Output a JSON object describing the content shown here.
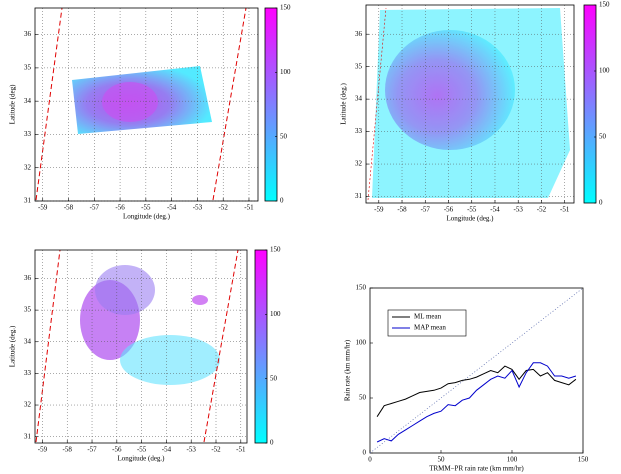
{
  "chart_data": [
    {
      "type": "image",
      "xlabel": "Longitude (deg.)",
      "ylabel": "Latitude (deg)",
      "xlim": [
        -59.3,
        -50.65
      ],
      "ylim": [
        31,
        36.8
      ],
      "xticks": [
        -59,
        -58,
        -57,
        -56,
        -55,
        -54,
        -53,
        -52,
        -51
      ],
      "yticks": [
        31,
        32,
        33,
        34,
        35,
        36
      ],
      "grid": true,
      "clim": [
        0,
        150
      ],
      "cticks": [
        0,
        50,
        100,
        150
      ]
    },
    {
      "type": "image",
      "xlabel": "Longitude (deg.)",
      "ylabel": "Latitude (deg.)",
      "xlim": [
        -59.55,
        -50.6
      ],
      "ylim": [
        30.8,
        36.9
      ],
      "xticks": [
        -59,
        -58,
        -57,
        -56,
        -55,
        -54,
        -53,
        -52,
        -51
      ],
      "yticks": [
        31,
        32,
        33,
        34,
        35,
        36
      ],
      "grid": true,
      "clim": [
        0,
        150
      ],
      "cticks": [
        0,
        50,
        100,
        150
      ]
    },
    {
      "type": "image",
      "xlabel": "Longitude (deg.)",
      "ylabel": "Latitude (deg.)",
      "xlim": [
        -59.3,
        -50.75
      ],
      "ylim": [
        30.8,
        36.9
      ],
      "xticks": [
        -59,
        -58,
        -57,
        -56,
        -55,
        -54,
        -53,
        -52,
        -51
      ],
      "yticks": [
        31,
        32,
        33,
        34,
        35,
        36
      ],
      "grid": true,
      "clim": [
        0,
        150
      ],
      "cticks": [
        0,
        50,
        100,
        150
      ]
    },
    {
      "type": "line",
      "xlabel": "TRMM−PR rain rate (km mm/hr)",
      "ylabel": "Rain rate (km mm/hr)",
      "xlim": [
        0,
        150
      ],
      "ylim": [
        0,
        150
      ],
      "xticks": [
        0,
        50,
        100,
        150
      ],
      "yticks": [
        0,
        50,
        100,
        150
      ],
      "grid": false,
      "legend": "upper-left",
      "x": [
        5,
        10,
        15,
        20,
        25,
        30,
        35,
        40,
        45,
        50,
        55,
        60,
        65,
        70,
        75,
        80,
        85,
        90,
        95,
        100,
        105,
        110,
        115,
        120,
        125,
        130,
        135,
        140,
        145
      ],
      "series": [
        {
          "name": "ML mean",
          "color": "#000000",
          "values": [
            33,
            43,
            45,
            47,
            49,
            52,
            55,
            56,
            57,
            59,
            63,
            64,
            66,
            67,
            69,
            72,
            75,
            73,
            79,
            76,
            67,
            75,
            76,
            70,
            73,
            66,
            64,
            62,
            67
          ]
        },
        {
          "name": "MAP mean",
          "color": "#0000cc",
          "values": [
            10,
            13,
            11,
            17,
            21,
            25,
            29,
            33,
            36,
            38,
            44,
            43,
            48,
            50,
            57,
            62,
            67,
            70,
            68,
            75,
            60,
            73,
            82,
            82,
            79,
            70,
            70,
            68,
            70
          ]
        }
      ]
    }
  ]
}
